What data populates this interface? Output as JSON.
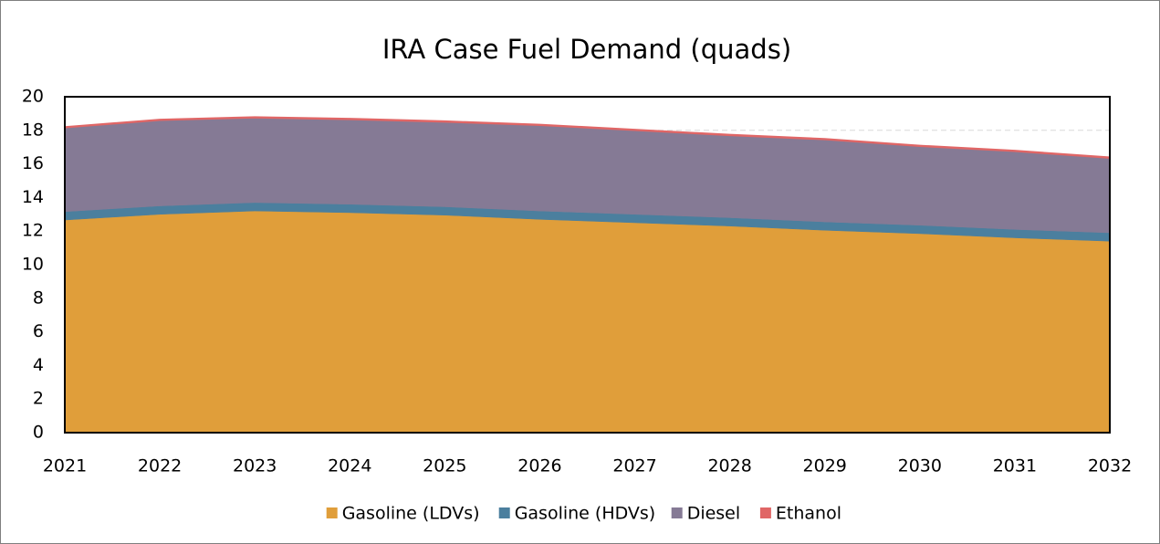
{
  "chart_data": {
    "type": "stacked_area",
    "title": "IRA Case Fuel Demand (quads)",
    "categories": [
      "2021",
      "2022",
      "2023",
      "2024",
      "2025",
      "2026",
      "2027",
      "2028",
      "2029",
      "2030",
      "2031",
      "2032"
    ],
    "series": [
      {
        "name": "Gasoline (LDVs)",
        "color": "#e09e3a",
        "values": [
          12.66,
          13.0,
          13.2,
          13.1,
          12.95,
          12.7,
          12.5,
          12.3,
          12.05,
          11.85,
          11.6,
          11.4
        ]
      },
      {
        "name": "Gasoline (HDVs)",
        "color": "#4b7f9e",
        "values": [
          0.5,
          0.5,
          0.5,
          0.5,
          0.5,
          0.5,
          0.5,
          0.5,
          0.5,
          0.5,
          0.5,
          0.5
        ]
      },
      {
        "name": "Diesel",
        "color": "#857a95",
        "values": [
          5.0,
          5.1,
          5.05,
          5.05,
          5.05,
          5.1,
          5.0,
          4.9,
          4.9,
          4.7,
          4.65,
          4.45
        ]
      },
      {
        "name": "Ethanol",
        "color": "#e06666",
        "values": [
          0.05,
          0.05,
          0.05,
          0.05,
          0.05,
          0.05,
          0.05,
          0.05,
          0.05,
          0.05,
          0.05,
          0.05
        ]
      }
    ],
    "ylim": [
      0,
      20
    ],
    "yticks": [
      0,
      2,
      4,
      6,
      8,
      10,
      12,
      14,
      16,
      18,
      20
    ],
    "grid": true,
    "legend": "bottom"
  }
}
